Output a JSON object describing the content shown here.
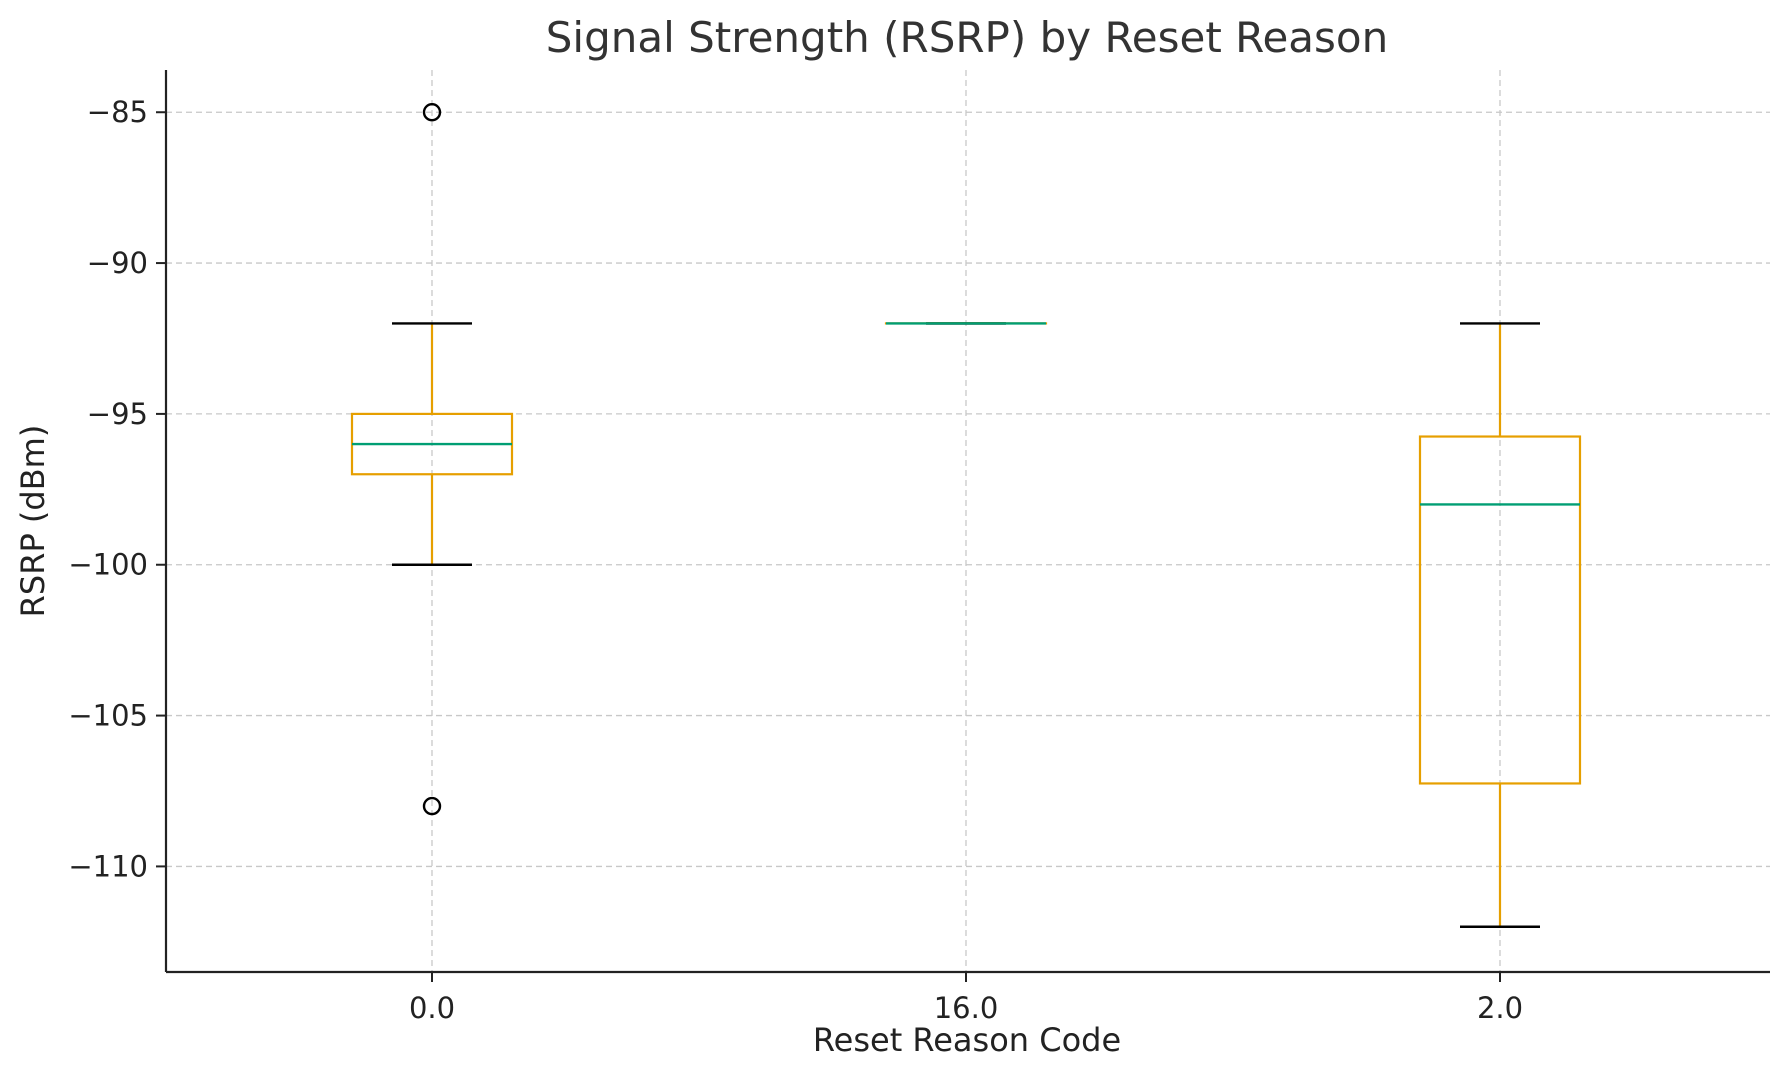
{
  "chart_data": {
    "type": "box",
    "title": "Signal Strength (RSRP) by Reset Reason",
    "xlabel": "Reset Reason Code",
    "ylabel": "RSRP (dBm)",
    "categories": [
      "0.0",
      "16.0",
      "2.0"
    ],
    "ylim": [
      -113.5,
      -83.6
    ],
    "yticks": [
      -85,
      -90,
      -95,
      -100,
      -105,
      -110
    ],
    "ytick_labels": [
      "−85",
      "−90",
      "−95",
      "−100",
      "−105",
      "−110"
    ],
    "grid": true,
    "boxes": [
      {
        "category": "0.0",
        "whisker_low": -100,
        "q1": -97,
        "median": -96,
        "q3": -95,
        "whisker_high": -92,
        "outliers": [
          -85,
          -108
        ]
      },
      {
        "category": "16.0",
        "whisker_low": -92,
        "q1": -92,
        "median": -92,
        "q3": -92,
        "whisker_high": -92,
        "outliers": []
      },
      {
        "category": "2.0",
        "whisker_low": -112,
        "q1": -107.25,
        "median": -98,
        "q3": -95.75,
        "whisker_high": -92,
        "outliers": []
      }
    ],
    "colors": {
      "box": "#e69f00",
      "median": "#009e73",
      "cap": "#000000",
      "outlier": "#000000"
    }
  }
}
